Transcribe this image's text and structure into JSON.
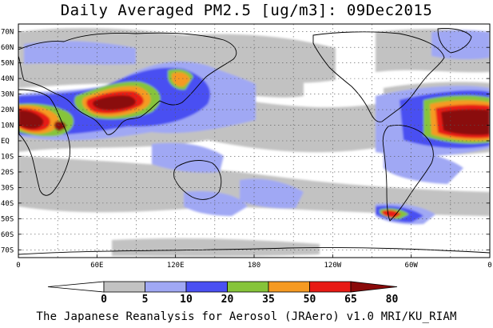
{
  "title": "Daily Averaged PM2.5 [ug/m3]: 09Dec2015",
  "caption": "The Japanese Reanalysis for Aerosol (JRAero) v1.0 MRI/KU_RIAM",
  "map": {
    "lat_labels": [
      "70N",
      "60N",
      "50N",
      "40N",
      "30N",
      "20N",
      "10N",
      "EQ",
      "10S",
      "20S",
      "30S",
      "40S",
      "50S",
      "60S",
      "70S"
    ],
    "lon_labels": [
      "0",
      "60E",
      "120E",
      "180",
      "120W",
      "60W",
      "0"
    ],
    "grid": "dotted",
    "land_fill": "#ffffff",
    "coast_color": "#000000"
  },
  "colorbar": {
    "labels": [
      "0",
      "5",
      "10",
      "20",
      "35",
      "50",
      "65",
      "80"
    ],
    "colors": [
      "#ffffff",
      "#c2c2c2",
      "#a0a8f4",
      "#4a50f2",
      "#86c43a",
      "#f69a22",
      "#e81a14",
      "#8a0a0a"
    ]
  }
}
